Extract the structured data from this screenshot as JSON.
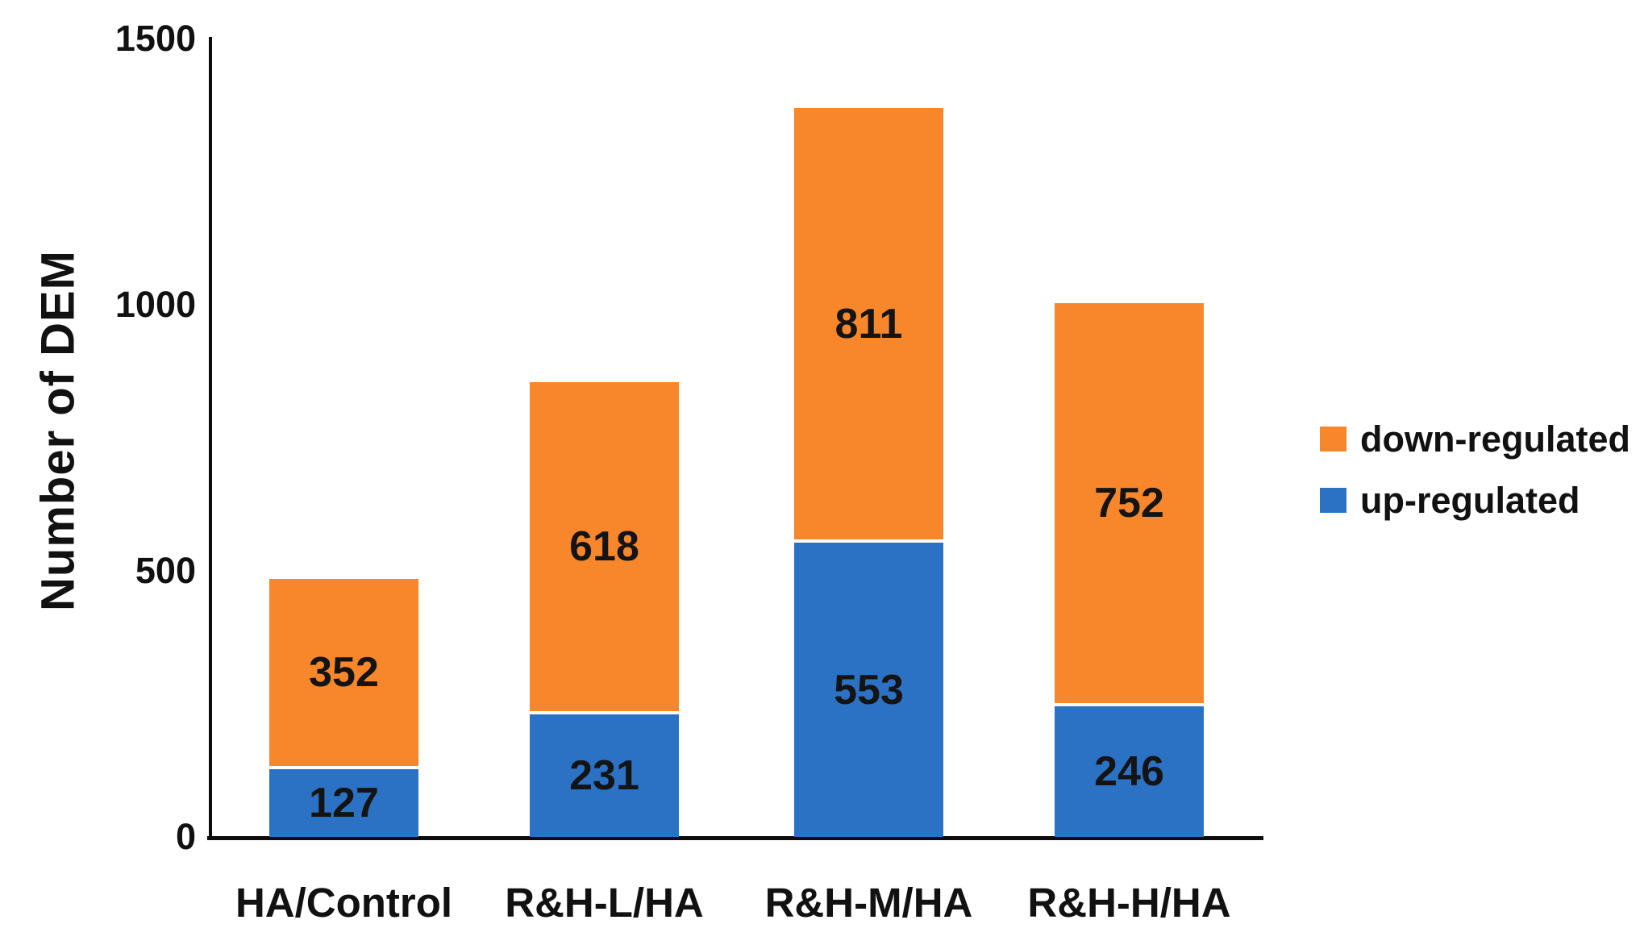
{
  "chart_data": {
    "type": "bar",
    "stacked": true,
    "title": "",
    "xlabel": "",
    "ylabel": "Number of DEM",
    "categories": [
      "HA/Control",
      "R&H-L/HA",
      "R&H-M/HA",
      "R&H-H/HA"
    ],
    "series": [
      {
        "name": "up-regulated",
        "color": "#2B72C4",
        "values": [
          127,
          231,
          553,
          246
        ]
      },
      {
        "name": "down-regulated",
        "color": "#F8872B",
        "values": [
          352,
          618,
          811,
          752
        ]
      }
    ],
    "totals": [
      479,
      849,
      1364,
      998
    ],
    "ylim": [
      0,
      1500
    ],
    "yticks": [
      "0",
      "500",
      "1000",
      "1500"
    ],
    "ytick_values": [
      0,
      500,
      1000,
      1500
    ],
    "grid": false,
    "legend_position": "right",
    "legend_order": [
      "down-regulated",
      "up-regulated"
    ],
    "bar_value_labels_shown": true
  },
  "colors": {
    "background": "#ffffff",
    "axis": "#0d0d0d",
    "text": "#111111",
    "bar_label_text": "#141414",
    "up_regulated": "#2B72C4",
    "down_regulated": "#F8872B"
  }
}
